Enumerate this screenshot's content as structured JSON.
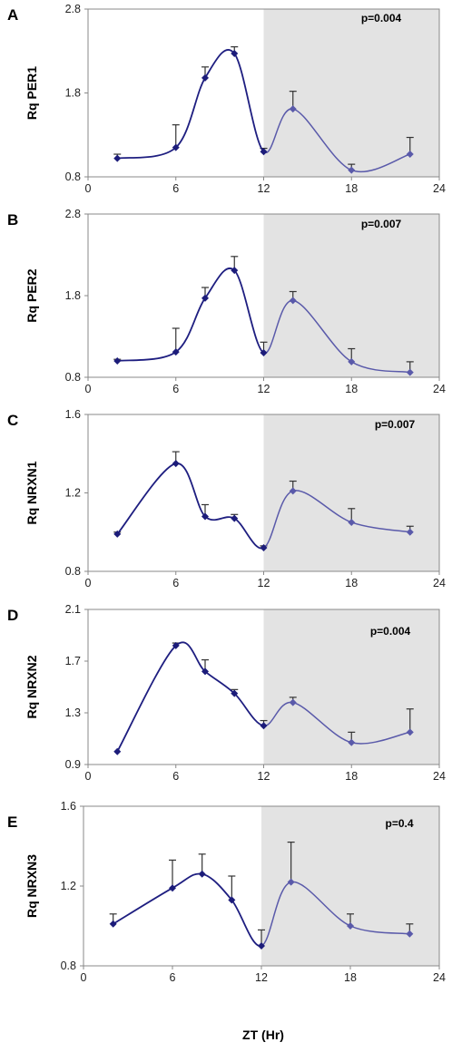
{
  "figure": {
    "xlabel": "ZT (Hr)"
  },
  "chart_data": [
    {
      "type": "line",
      "panel": "A",
      "ylabel": "Rq PER1",
      "annotation": "p=0.004",
      "xlim": [
        0,
        24
      ],
      "xticks": [
        0,
        6,
        12,
        18,
        24
      ],
      "ylim": [
        0.8,
        2.8
      ],
      "yticks": [
        0.8,
        1.8,
        2.8
      ],
      "shaded_x": [
        12,
        24
      ],
      "x": [
        2,
        6,
        8,
        10,
        12,
        14,
        18,
        22
      ],
      "y": [
        1.02,
        1.15,
        1.98,
        2.27,
        1.1,
        1.61,
        0.88,
        1.07
      ],
      "yerr": [
        0.05,
        0.27,
        0.13,
        0.08,
        0.04,
        0.21,
        0.07,
        0.2
      ]
    },
    {
      "type": "line",
      "panel": "B",
      "ylabel": "Rq PER2",
      "annotation": "p=0.007",
      "xlim": [
        0,
        24
      ],
      "xticks": [
        0,
        6,
        12,
        18,
        24
      ],
      "ylim": [
        0.8,
        2.8
      ],
      "yticks": [
        0.8,
        1.8,
        2.8
      ],
      "shaded_x": [
        12,
        24
      ],
      "x": [
        2,
        6,
        8,
        10,
        12,
        14,
        18,
        22
      ],
      "y": [
        1.0,
        1.11,
        1.77,
        2.11,
        1.1,
        1.74,
        0.99,
        0.86
      ],
      "yerr": [
        0.02,
        0.29,
        0.13,
        0.17,
        0.13,
        0.11,
        0.16,
        0.13
      ]
    },
    {
      "type": "line",
      "panel": "C",
      "ylabel": "Rq NRXN1",
      "annotation": "p=0.007",
      "xlim": [
        0,
        24
      ],
      "xticks": [
        0,
        6,
        12,
        18,
        24
      ],
      "ylim": [
        0.8,
        1.6
      ],
      "yticks": [
        0.8,
        1.2,
        1.6
      ],
      "shaded_x": [
        12,
        24
      ],
      "x": [
        2,
        6,
        8,
        10,
        12,
        14,
        18,
        22
      ],
      "y": [
        0.99,
        1.35,
        1.08,
        1.07,
        0.92,
        1.21,
        1.05,
        1.0
      ],
      "yerr": [
        0.01,
        0.06,
        0.06,
        0.02,
        0.01,
        0.05,
        0.07,
        0.03
      ]
    },
    {
      "type": "line",
      "panel": "D",
      "ylabel": "Rq NRXN2",
      "annotation": "p=0.004",
      "xlim": [
        0,
        24
      ],
      "xticks": [
        0,
        6,
        12,
        18,
        24
      ],
      "ylim": [
        0.9,
        2.1
      ],
      "yticks": [
        0.9,
        1.3,
        1.7,
        2.1
      ],
      "shaded_x": [
        12,
        24
      ],
      "x": [
        2,
        6,
        8,
        10,
        12,
        14,
        18,
        22
      ],
      "y": [
        1.0,
        1.82,
        1.62,
        1.45,
        1.2,
        1.38,
        1.07,
        1.15
      ],
      "yerr": [
        0.0,
        0.02,
        0.09,
        0.03,
        0.04,
        0.04,
        0.08,
        0.18
      ]
    },
    {
      "type": "line",
      "panel": "E",
      "ylabel": "Rq NRXN3",
      "annotation": "p=0.4",
      "xlim": [
        0,
        24
      ],
      "xticks": [
        0,
        6,
        12,
        18,
        24
      ],
      "ylim": [
        0.8,
        1.6
      ],
      "yticks": [
        0.8,
        1.2,
        1.6
      ],
      "shaded_x": [
        12,
        24
      ],
      "x": [
        2,
        6,
        8,
        10,
        12,
        14,
        18,
        22
      ],
      "y": [
        1.01,
        1.19,
        1.26,
        1.13,
        0.9,
        1.22,
        1.0,
        0.96
      ],
      "yerr": [
        0.05,
        0.14,
        0.1,
        0.12,
        0.08,
        0.2,
        0.06,
        0.05
      ]
    }
  ],
  "colors": {
    "line_day": "#1e1e80",
    "line_night": "#5a5aaa",
    "marker": "#1c1c7a",
    "shade": "#e3e3e3",
    "axis": "#888888",
    "errorbar": "#333333"
  }
}
